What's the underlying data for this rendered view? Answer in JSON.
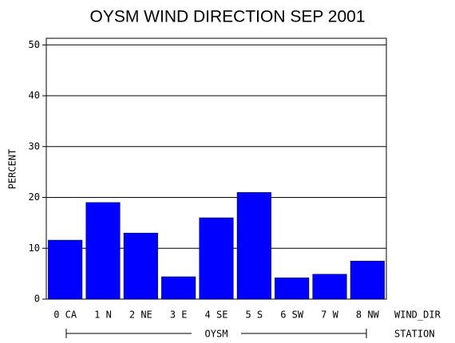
{
  "chart_data": {
    "type": "bar",
    "title": "OYSM WIND DIRECTION SEP 2001",
    "y_label": "PERCENT",
    "x_label": "WIND_DIR",
    "group_label": "OYSM",
    "group_axis_label": "STATION",
    "categories": [
      "0 CA",
      "1 N",
      "2 NE",
      "3 E",
      "4 SE",
      "5 S",
      "6 SW",
      "7 W",
      "8 NW"
    ],
    "values": [
      11.6,
      19.0,
      13.0,
      4.4,
      16.0,
      21.0,
      4.2,
      4.9,
      7.5
    ],
    "color": "#0000ff",
    "ylim": [
      0,
      51.3
    ],
    "yticks": [
      0,
      10,
      20,
      30,
      40,
      50
    ],
    "grid": true
  }
}
